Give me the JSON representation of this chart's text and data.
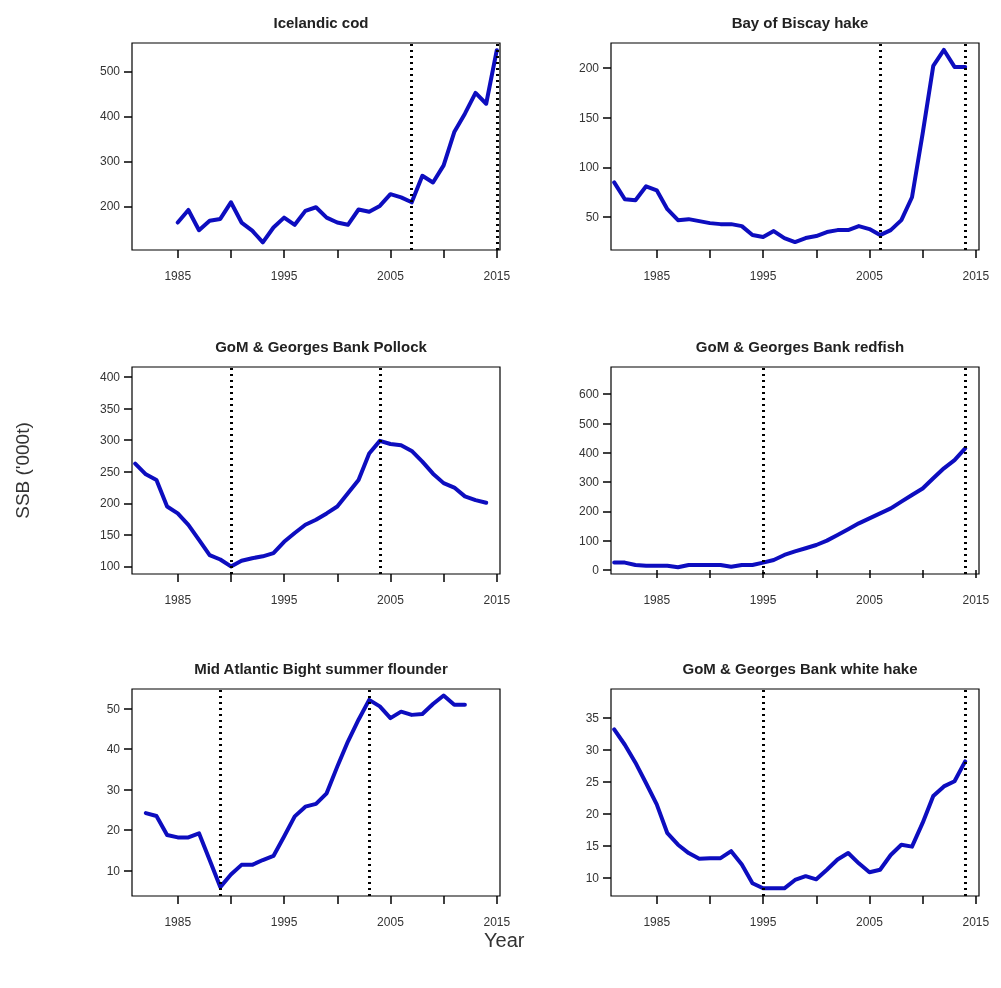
{
  "chart_data": [
    {
      "type": "line",
      "title": "Icelandic cod",
      "x": [
        1985,
        1986,
        1987,
        1988,
        1989,
        1990,
        1991,
        1992,
        1993,
        1994,
        1995,
        1996,
        1997,
        1998,
        1999,
        2000,
        2001,
        2002,
        2003,
        2004,
        2005,
        2006,
        2007,
        2008,
        2009,
        2010,
        2011,
        2012,
        2013,
        2014,
        2015
      ],
      "series": [
        {
          "color": "#0d0dbf",
          "values": [
            164,
            192,
            147,
            168,
            172,
            209,
            164,
            146,
            120,
            153,
            175,
            159,
            190,
            198,
            175,
            164,
            159,
            193,
            188,
            201,
            227,
            220,
            209,
            268,
            253,
            291,
            365,
            406,
            452,
            428,
            547
          ]
        }
      ],
      "xlim": [
        1980.7,
        2015.3
      ],
      "xticks": [
        1985,
        {
          "value": 1990,
          "label": null
        },
        1995,
        {
          "value": 2000,
          "label": null
        },
        2005,
        {
          "value": 2010,
          "label": null
        },
        2015
      ],
      "ylim": [
        103,
        563
      ],
      "yticks": [
        200,
        300,
        400,
        500
      ],
      "ref_lines": [
        {
          "axis": "x",
          "value": 2007,
          "color": "#000000",
          "line_style": "dotted"
        },
        {
          "axis": "x",
          "value": 2015,
          "color": "#000000",
          "line_style": "dotted"
        }
      ],
      "grid": false,
      "marker": "none"
    },
    {
      "type": "line",
      "title": "Bay of Biscay hake",
      "x": [
        1981,
        1982,
        1983,
        1984,
        1985,
        1986,
        1987,
        1988,
        1989,
        1990,
        1991,
        1992,
        1993,
        1994,
        1995,
        1996,
        1997,
        1998,
        1999,
        2000,
        2001,
        2002,
        2003,
        2004,
        2005,
        2006,
        2007,
        2008,
        2009,
        2010,
        2011,
        2012,
        2013,
        2014
      ],
      "series": [
        {
          "color": "#0d0dbf",
          "values": [
            85,
            68,
            67,
            81,
            77,
            58,
            47,
            48,
            46,
            44,
            43,
            43,
            41,
            32,
            30,
            36,
            29,
            25,
            29,
            31,
            35,
            37,
            37,
            41,
            38,
            32,
            37,
            47,
            70,
            134,
            202,
            218,
            201,
            201
          ]
        }
      ],
      "xlim": [
        1980.7,
        2015.3
      ],
      "xticks": [
        1985,
        {
          "value": 1990,
          "label": null
        },
        1995,
        {
          "value": 2000,
          "label": null
        },
        2005,
        {
          "value": 2010,
          "label": null
        },
        2015
      ],
      "ylim": [
        17,
        225
      ],
      "yticks": [
        50,
        100,
        150,
        200
      ],
      "ref_lines": [
        {
          "axis": "x",
          "value": 2006,
          "color": "#000000",
          "line_style": "dotted"
        },
        {
          "axis": "x",
          "value": 2014,
          "color": "#000000",
          "line_style": "dotted"
        }
      ],
      "grid": false,
      "marker": "none"
    },
    {
      "type": "line",
      "title": "GoM & Georges Bank Pollock",
      "ylabel": "SSB ('000t)",
      "x": [
        1981,
        1982,
        1983,
        1984,
        1985,
        1986,
        1987,
        1988,
        1989,
        1990,
        1991,
        1992,
        1993,
        1994,
        1995,
        1996,
        1997,
        1998,
        1999,
        2000,
        2001,
        2002,
        2003,
        2004,
        2005,
        2006,
        2007,
        2008,
        2009,
        2010,
        2011,
        2012,
        2013,
        2014
      ],
      "series": [
        {
          "color": "#0d0dbf",
          "values": [
            263,
            246,
            237,
            195,
            184,
            166,
            142,
            118,
            111,
            100,
            109,
            113,
            116,
            121,
            139,
            153,
            166,
            174,
            184,
            195,
            216,
            237,
            279,
            299,
            294,
            292,
            283,
            266,
            247,
            232,
            225,
            211,
            205,
            201
          ]
        }
      ],
      "xlim": [
        1980.7,
        2015.3
      ],
      "xticks": [
        1985,
        {
          "value": 1990,
          "label": null
        },
        1995,
        {
          "value": 2000,
          "label": null
        },
        2005,
        {
          "value": 2010,
          "label": null
        },
        2015
      ],
      "ylim": [
        88,
        416
      ],
      "yticks": [
        100,
        150,
        200,
        250,
        300,
        350,
        400
      ],
      "ref_lines": [
        {
          "axis": "x",
          "value": 1990,
          "color": "#000000",
          "line_style": "dotted"
        },
        {
          "axis": "x",
          "value": 2004,
          "color": "#000000",
          "line_style": "dotted"
        }
      ],
      "grid": false,
      "marker": "none"
    },
    {
      "type": "line",
      "title": "GoM & Georges Bank redfish",
      "x": [
        1981,
        1982,
        1983,
        1984,
        1985,
        1986,
        1987,
        1988,
        1989,
        1990,
        1991,
        1992,
        1993,
        1994,
        1995,
        1996,
        1997,
        1998,
        1999,
        2000,
        2001,
        2002,
        2003,
        2004,
        2005,
        2006,
        2007,
        2008,
        2009,
        2010,
        2011,
        2012,
        2013,
        2014
      ],
      "series": [
        {
          "color": "#0d0dbf",
          "values": [
            25,
            25,
            17,
            14,
            14,
            14,
            9,
            17,
            17,
            17,
            17,
            11,
            17,
            17,
            25,
            34,
            51,
            63,
            74,
            85,
            100,
            119,
            139,
            159,
            176,
            193,
            210,
            233,
            256,
            278,
            313,
            347,
            375,
            415
          ]
        }
      ],
      "xlim": [
        1980.7,
        2015.3
      ],
      "xticks": [
        1985,
        {
          "value": 1990,
          "label": null
        },
        1995,
        {
          "value": 2000,
          "label": null
        },
        2005,
        {
          "value": 2010,
          "label": null
        },
        2015
      ],
      "ylim": [
        -14,
        693
      ],
      "yticks": [
        0,
        100,
        200,
        300,
        400,
        500,
        600
      ],
      "ref_lines": [
        {
          "axis": "x",
          "value": 1995,
          "color": "#000000",
          "line_style": "dotted"
        },
        {
          "axis": "x",
          "value": 2014,
          "color": "#000000",
          "line_style": "dotted"
        }
      ],
      "grid": false,
      "marker": "none"
    },
    {
      "type": "line",
      "title": "Mid Atlantic Bight summer flounder",
      "xlabel": "Year",
      "x": [
        1982,
        1983,
        1984,
        1985,
        1986,
        1987,
        1988,
        1989,
        1990,
        1991,
        1992,
        1993,
        1994,
        1995,
        1996,
        1997,
        1998,
        1999,
        2000,
        2001,
        2002,
        2003,
        2004,
        2005,
        2006,
        2007,
        2008,
        2009,
        2010,
        2011,
        2012
      ],
      "series": [
        {
          "color": "#0d0dbf",
          "values": [
            24.2,
            23.5,
            18.8,
            18.2,
            18.2,
            19.2,
            12.6,
            5.9,
            9,
            11.4,
            11.4,
            12.6,
            13.6,
            18.4,
            23.4,
            25.8,
            26.5,
            29.1,
            35.7,
            41.9,
            47.3,
            52.2,
            50.6,
            47.7,
            49.3,
            48.5,
            48.7,
            51.2,
            53.3,
            51,
            51
          ]
        }
      ],
      "xlim": [
        1980.7,
        2015.3
      ],
      "xticks": [
        1985,
        {
          "value": 1990,
          "label": null
        },
        1995,
        {
          "value": 2000,
          "label": null
        },
        2005,
        {
          "value": 2010,
          "label": null
        },
        2015
      ],
      "ylim": [
        3.7,
        54.9
      ],
      "yticks": [
        10,
        20,
        30,
        40,
        50
      ],
      "ref_lines": [
        {
          "axis": "x",
          "value": 1989,
          "color": "#000000",
          "line_style": "dotted"
        },
        {
          "axis": "x",
          "value": 2003,
          "color": "#000000",
          "line_style": "dotted"
        }
      ],
      "grid": false,
      "marker": "none"
    },
    {
      "type": "line",
      "title": "GoM & Georges Bank white hake",
      "x": [
        1981,
        1982,
        1983,
        1984,
        1985,
        1986,
        1987,
        1988,
        1989,
        1990,
        1991,
        1992,
        1993,
        1994,
        1995,
        1996,
        1997,
        1998,
        1999,
        2000,
        2001,
        2002,
        2003,
        2004,
        2005,
        2006,
        2007,
        2008,
        2009,
        2010,
        2011,
        2012,
        2013,
        2014
      ],
      "series": [
        {
          "color": "#0d0dbf",
          "values": [
            33.2,
            30.8,
            28,
            24.8,
            21.5,
            17,
            15.2,
            13.9,
            13,
            13.1,
            13.1,
            14.2,
            12.1,
            9.2,
            8.4,
            8.4,
            8.4,
            9.7,
            10.3,
            9.8,
            11.3,
            12.9,
            13.9,
            12.3,
            10.9,
            11.3,
            13.6,
            15.2,
            14.9,
            18.6,
            22.8,
            24.3,
            25.1,
            28.2
          ]
        }
      ],
      "xlim": [
        1980.7,
        2015.3
      ],
      "xticks": [
        1985,
        {
          "value": 1990,
          "label": null
        },
        1995,
        {
          "value": 2000,
          "label": null
        },
        2005,
        {
          "value": 2010,
          "label": null
        },
        2015
      ],
      "ylim": [
        7.2,
        39.5
      ],
      "yticks": [
        10,
        15,
        20,
        25,
        30,
        35
      ],
      "ref_lines": [
        {
          "axis": "x",
          "value": 1995,
          "color": "#000000",
          "line_style": "dotted"
        },
        {
          "axis": "x",
          "value": 2014,
          "color": "#000000",
          "line_style": "dotted"
        }
      ],
      "grid": false,
      "marker": "none"
    }
  ]
}
